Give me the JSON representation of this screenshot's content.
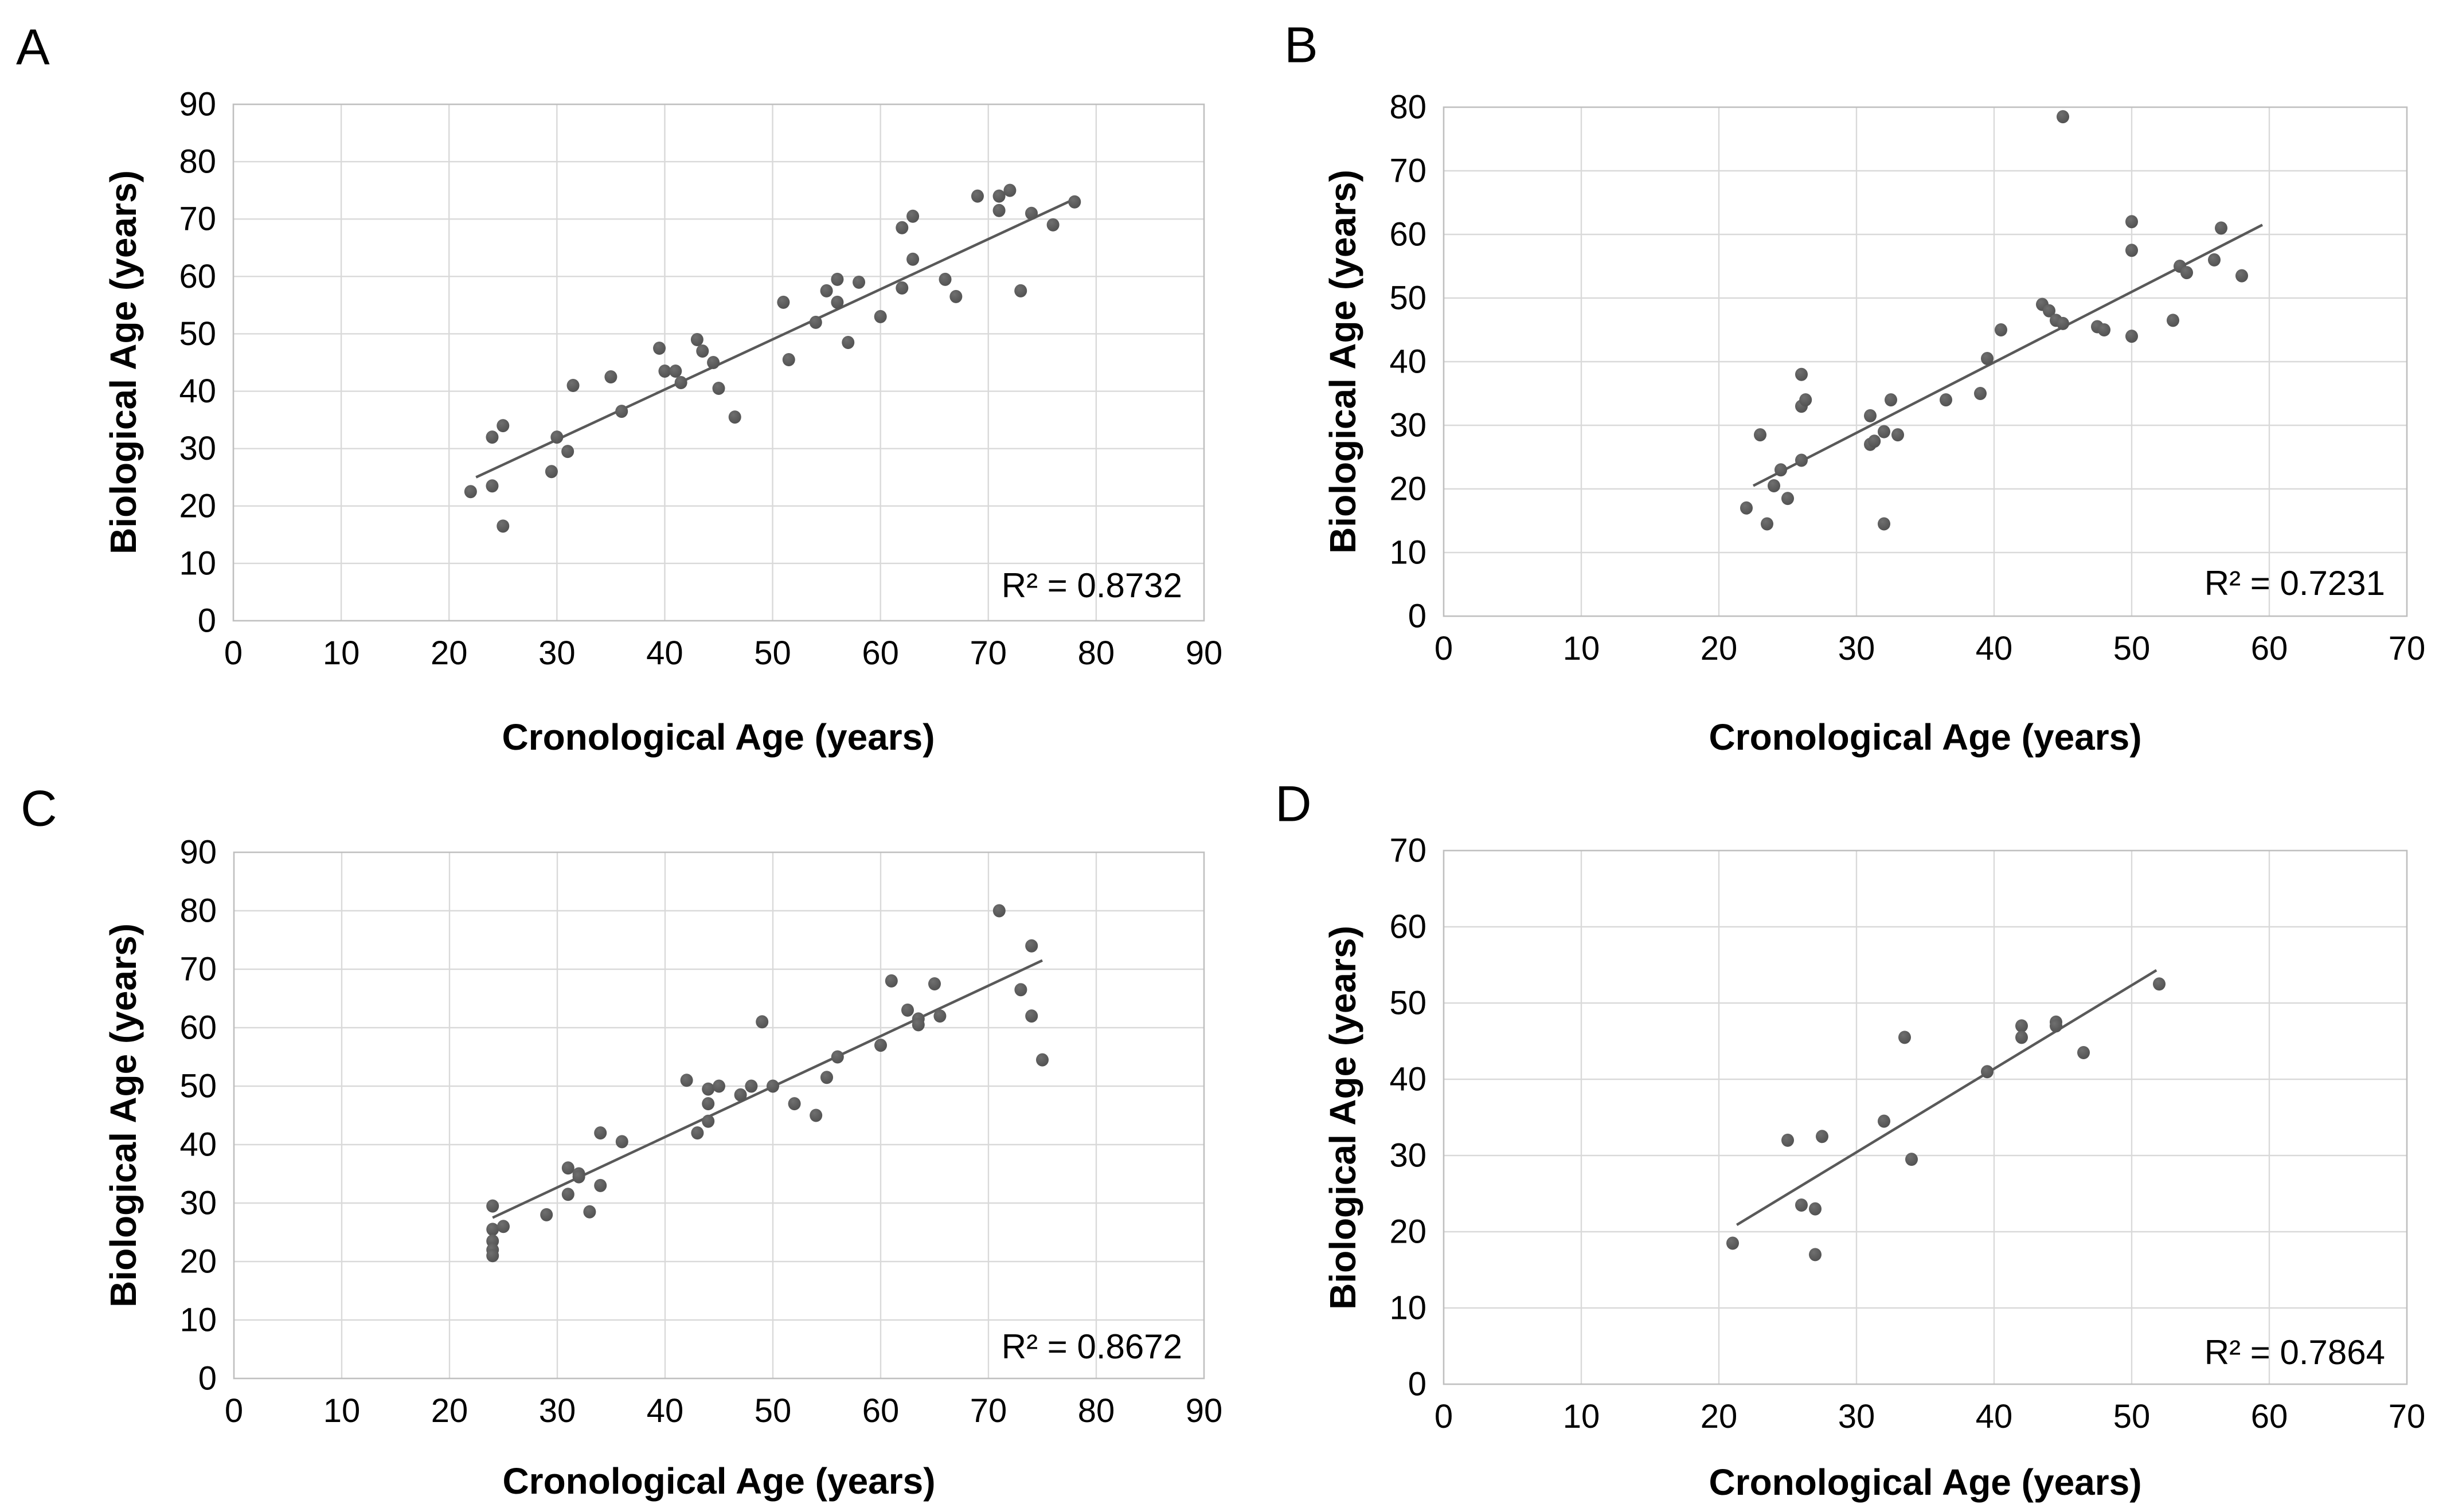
{
  "figure": {
    "background": "#ffffff",
    "text_color": "#000000",
    "grid_color": "#d9d9d9",
    "border_color": "#bfbfbf",
    "point_color": "#595959",
    "point_color_light": "#6f6f6f",
    "point_color_dark": "#4d4d4d",
    "trendline_color": "#595959"
  },
  "chart_data": [
    {
      "type": "scatter",
      "panel_label": "A",
      "xlabel": "Cronological Age (years)",
      "ylabel": "Biological Age (years)",
      "r_squared_label": "R² = 0.8732",
      "xlim": [
        0,
        90
      ],
      "ylim": [
        0,
        90
      ],
      "tick_step": 10,
      "grid": true,
      "legend": "none",
      "trendline": {
        "x1": 22.5,
        "y1": 25.0,
        "x2": 78.0,
        "y2": 73.5
      },
      "points": [
        [
          22,
          22.5
        ],
        [
          24,
          23.5
        ],
        [
          24,
          32
        ],
        [
          25,
          34
        ],
        [
          25,
          16.5
        ],
        [
          29.5,
          26
        ],
        [
          30,
          32
        ],
        [
          31,
          29.5
        ],
        [
          31.5,
          41
        ],
        [
          35,
          42.5
        ],
        [
          36,
          36.5
        ],
        [
          39.5,
          47.5
        ],
        [
          40,
          43.5
        ],
        [
          41,
          43.5
        ],
        [
          41.5,
          41.5
        ],
        [
          43,
          49
        ],
        [
          43.5,
          47
        ],
        [
          44.5,
          45
        ],
        [
          45,
          40.5
        ],
        [
          46.5,
          35.5
        ],
        [
          51,
          55.5
        ],
        [
          51.5,
          45.5
        ],
        [
          54,
          52
        ],
        [
          55,
          57.5
        ],
        [
          56,
          55.5
        ],
        [
          56,
          59.5
        ],
        [
          58,
          59
        ],
        [
          57,
          48.5
        ],
        [
          60,
          53
        ],
        [
          62,
          58
        ],
        [
          62,
          68.5
        ],
        [
          63,
          70.5
        ],
        [
          63,
          63
        ],
        [
          66,
          59.5
        ],
        [
          67,
          56.5
        ],
        [
          69,
          74
        ],
        [
          71,
          74
        ],
        [
          71,
          71.5
        ],
        [
          72,
          75
        ],
        [
          73,
          57.5
        ],
        [
          74,
          71
        ],
        [
          76,
          69
        ],
        [
          78,
          73
        ]
      ]
    },
    {
      "type": "scatter",
      "panel_label": "B",
      "xlabel": "Cronological Age (years)",
      "ylabel": "Biological Age (years)",
      "r_squared_label": "R² = 0.7231",
      "xlim": [
        0,
        70
      ],
      "ylim": [
        0,
        80
      ],
      "tick_step": 10,
      "grid": true,
      "legend": "none",
      "trendline": {
        "x1": 22.5,
        "y1": 20.5,
        "x2": 59.5,
        "y2": 61.5
      },
      "points": [
        [
          22,
          17
        ],
        [
          23,
          28.5
        ],
        [
          23.5,
          14.5
        ],
        [
          24,
          20.5
        ],
        [
          24.5,
          23
        ],
        [
          25,
          18.5
        ],
        [
          26,
          24.5
        ],
        [
          26,
          33
        ],
        [
          26.3,
          34
        ],
        [
          26,
          38
        ],
        [
          31,
          27
        ],
        [
          31.3,
          27.5
        ],
        [
          31,
          31.5
        ],
        [
          32,
          29
        ],
        [
          32,
          14.5
        ],
        [
          32.5,
          34
        ],
        [
          33,
          28.5
        ],
        [
          36.5,
          34
        ],
        [
          39,
          35
        ],
        [
          39.5,
          40.5
        ],
        [
          40.5,
          45
        ],
        [
          43.5,
          49
        ],
        [
          44,
          48
        ],
        [
          44.5,
          46.5
        ],
        [
          45,
          46
        ],
        [
          45,
          78.5
        ],
        [
          47.5,
          45.5
        ],
        [
          48,
          45
        ],
        [
          50,
          44
        ],
        [
          50,
          57.5
        ],
        [
          50,
          62
        ],
        [
          53,
          46.5
        ],
        [
          53.5,
          55
        ],
        [
          54,
          54
        ],
        [
          56,
          56
        ],
        [
          56.5,
          61
        ],
        [
          58,
          53.5
        ]
      ]
    },
    {
      "type": "scatter",
      "panel_label": "C",
      "xlabel": "Cronological Age (years)",
      "ylabel": "Biological Age (years)",
      "r_squared_label": "R² = 0.8672",
      "xlim": [
        0,
        90
      ],
      "ylim": [
        0,
        90
      ],
      "tick_step": 10,
      "grid": true,
      "legend": "none",
      "trendline": {
        "x1": 24.0,
        "y1": 27.5,
        "x2": 75.0,
        "y2": 71.5
      },
      "points": [
        [
          24,
          29.5
        ],
        [
          24,
          25.5
        ],
        [
          24,
          23.5
        ],
        [
          24,
          22
        ],
        [
          24,
          21
        ],
        [
          25,
          26
        ],
        [
          29,
          28
        ],
        [
          31,
          36
        ],
        [
          31,
          31.5
        ],
        [
          32,
          35
        ],
        [
          32,
          34.5
        ],
        [
          33,
          28.5
        ],
        [
          34,
          33
        ],
        [
          34,
          42
        ],
        [
          36,
          40.5
        ],
        [
          42,
          51
        ],
        [
          43,
          42
        ],
        [
          44,
          44
        ],
        [
          44,
          47
        ],
        [
          44,
          49.5
        ],
        [
          45,
          50
        ],
        [
          47,
          48.5
        ],
        [
          48,
          50
        ],
        [
          49,
          61
        ],
        [
          50,
          50
        ],
        [
          52,
          47
        ],
        [
          54,
          45
        ],
        [
          55,
          51.5
        ],
        [
          56,
          55
        ],
        [
          60,
          57
        ],
        [
          61,
          68
        ],
        [
          62.5,
          63
        ],
        [
          63.5,
          61.5
        ],
        [
          63.5,
          60.5
        ],
        [
          65.5,
          62
        ],
        [
          65,
          67.5
        ],
        [
          71,
          80
        ],
        [
          73,
          66.5
        ],
        [
          74,
          74
        ],
        [
          74,
          62
        ],
        [
          75,
          54.5
        ]
      ]
    },
    {
      "type": "scatter",
      "panel_label": "D",
      "xlabel": "Cronological Age (years)",
      "ylabel": "Biological Age (years)",
      "r_squared_label": "R² = 0.7864",
      "xlim": [
        0,
        70
      ],
      "ylim": [
        0,
        70
      ],
      "tick_step": 10,
      "grid": true,
      "legend": "none",
      "trendline": {
        "x1": 21.3,
        "y1": 20.9,
        "x2": 51.8,
        "y2": 54.3
      },
      "points": [
        [
          21,
          18.5
        ],
        [
          25,
          32
        ],
        [
          26,
          23.5
        ],
        [
          27,
          23
        ],
        [
          27,
          17
        ],
        [
          27.5,
          32.5
        ],
        [
          32,
          34.5
        ],
        [
          33.5,
          45.5
        ],
        [
          34,
          29.5
        ],
        [
          39.5,
          41
        ],
        [
          42,
          47
        ],
        [
          42,
          45.5
        ],
        [
          44.5,
          47.5
        ],
        [
          44.5,
          47
        ],
        [
          46.5,
          43.5
        ],
        [
          52,
          52.5
        ]
      ]
    }
  ]
}
